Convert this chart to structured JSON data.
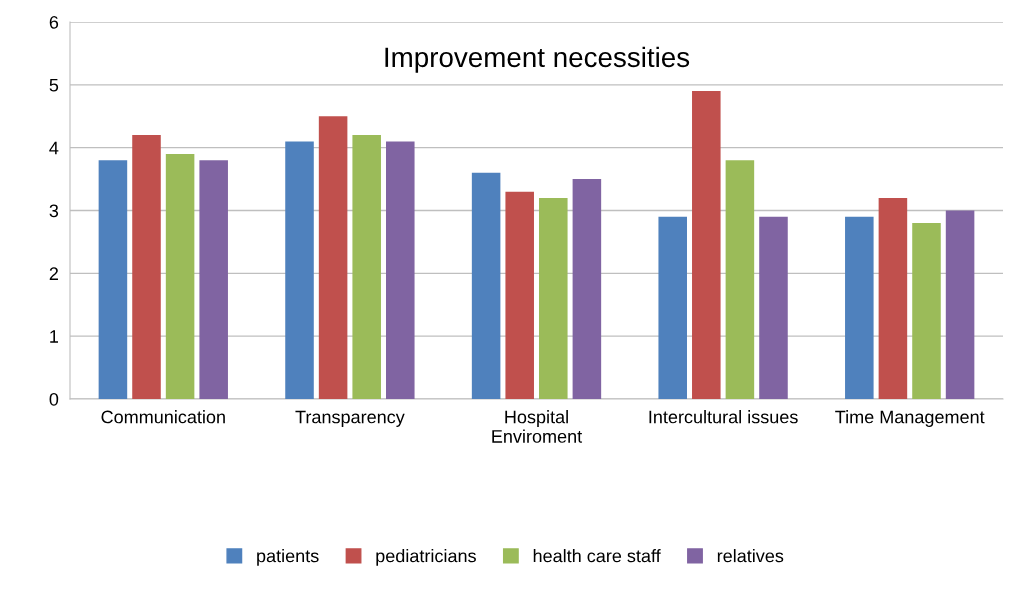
{
  "chart_data": {
    "type": "bar",
    "title": "Improvement necessities",
    "categories": [
      "Communication",
      "Transparency",
      "Hospital\nEnviroment",
      "Intercultural issues",
      "Time Management"
    ],
    "series": [
      {
        "name": "patients",
        "color": "#4f81bd",
        "values": [
          3.8,
          4.1,
          3.6,
          2.9,
          2.9
        ]
      },
      {
        "name": "pediatricians",
        "color": "#c0504d",
        "values": [
          4.2,
          4.5,
          3.3,
          4.9,
          3.2
        ]
      },
      {
        "name": "health care staff",
        "color": "#9bbb59",
        "values": [
          3.9,
          4.2,
          3.2,
          3.8,
          2.8
        ]
      },
      {
        "name": "relatives",
        "color": "#8064a2",
        "values": [
          3.8,
          4.1,
          3.5,
          2.9,
          3.0
        ]
      }
    ],
    "ylim": [
      0,
      6
    ],
    "yticks": [
      0,
      1,
      2,
      3,
      4,
      5,
      6
    ],
    "grid": "y",
    "legend": "bottom"
  }
}
